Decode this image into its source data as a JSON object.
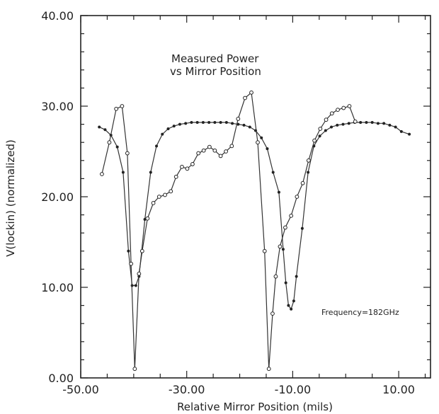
{
  "chart_data": {
    "type": "line",
    "title": "Measured Power",
    "subtitle": "vs Mirror Position",
    "xlabel": "Relative Mirror Position (mils)",
    "ylabel": "V(lockin) (normalized)",
    "xlim": [
      -50,
      16
    ],
    "ylim": [
      0,
      40
    ],
    "x_ticks": [
      -50,
      -30,
      -10,
      10
    ],
    "x_tick_labels": [
      "-50.00",
      "-30.00",
      "-10.00",
      "10.00"
    ],
    "y_ticks": [
      0,
      10,
      20,
      30,
      40
    ],
    "y_tick_labels": [
      "0.00",
      "10.00",
      "20.00",
      "30.00",
      "40.00"
    ],
    "annotation": "Frequency=182GHz",
    "series": [
      {
        "marker": "dot",
        "points": [
          [
            -46.5,
            27.7
          ],
          [
            -45.4,
            27.4
          ],
          [
            -44.3,
            26.8
          ],
          [
            -43.1,
            25.5
          ],
          [
            -42,
            22.7
          ],
          [
            -41,
            14
          ],
          [
            -40.3,
            10.2
          ],
          [
            -39.6,
            10.2
          ],
          [
            -39,
            11.2
          ],
          [
            -38.5,
            14
          ],
          [
            -37.9,
            17.5
          ],
          [
            -36.8,
            22.7
          ],
          [
            -35.7,
            25.6
          ],
          [
            -34.6,
            26.9
          ],
          [
            -33.5,
            27.5
          ],
          [
            -32.4,
            27.8
          ],
          [
            -31.3,
            28
          ],
          [
            -30.2,
            28.1
          ],
          [
            -29.1,
            28.2
          ],
          [
            -28,
            28.2
          ],
          [
            -26.9,
            28.2
          ],
          [
            -25.8,
            28.2
          ],
          [
            -24.7,
            28.2
          ],
          [
            -23.6,
            28.2
          ],
          [
            -22.5,
            28.2
          ],
          [
            -21.4,
            28.1
          ],
          [
            -20.3,
            28
          ],
          [
            -19.2,
            27.9
          ],
          [
            -18.1,
            27.7
          ],
          [
            -17,
            27.3
          ],
          [
            -15.9,
            26.5
          ],
          [
            -14.8,
            25.3
          ],
          [
            -13.7,
            22.7
          ],
          [
            -12.6,
            20.5
          ],
          [
            -11.8,
            14.2
          ],
          [
            -11.3,
            10.5
          ],
          [
            -10.8,
            8
          ],
          [
            -10.3,
            7.6
          ],
          [
            -9.8,
            8.5
          ],
          [
            -9.3,
            11.2
          ],
          [
            -8.2,
            16.5
          ],
          [
            -7.1,
            22.7
          ],
          [
            -6,
            25.6
          ],
          [
            -4.9,
            26.7
          ],
          [
            -3.8,
            27.3
          ],
          [
            -2.7,
            27.7
          ],
          [
            -1.6,
            27.9
          ],
          [
            -0.5,
            28
          ],
          [
            0.6,
            28.1
          ],
          [
            1.7,
            28.2
          ],
          [
            2.8,
            28.2
          ],
          [
            3.9,
            28.2
          ],
          [
            5,
            28.2
          ],
          [
            6.1,
            28.1
          ],
          [
            7.2,
            28.1
          ],
          [
            8.3,
            27.9
          ],
          [
            9.4,
            27.7
          ],
          [
            10.5,
            27.2
          ],
          [
            12,
            26.9
          ]
        ]
      },
      {
        "marker": "open",
        "points": [
          [
            -46,
            22.5
          ],
          [
            -44.6,
            26
          ],
          [
            -43.3,
            29.7
          ],
          [
            -42.2,
            30
          ],
          [
            -41.2,
            24.8
          ],
          [
            -40.5,
            12.6
          ],
          [
            -39.8,
            1
          ],
          [
            -39,
            11.5
          ],
          [
            -38.4,
            14
          ],
          [
            -37.4,
            17.6
          ],
          [
            -36.3,
            19.3
          ],
          [
            -35.2,
            20
          ],
          [
            -34.1,
            20.2
          ],
          [
            -33,
            20.6
          ],
          [
            -32,
            22.2
          ],
          [
            -30.9,
            23.3
          ],
          [
            -29.9,
            23.1
          ],
          [
            -28.9,
            23.6
          ],
          [
            -27.8,
            24.8
          ],
          [
            -26.8,
            25.1
          ],
          [
            -25.7,
            25.5
          ],
          [
            -24.7,
            25.1
          ],
          [
            -23.6,
            24.5
          ],
          [
            -22.6,
            25
          ],
          [
            -21.5,
            25.6
          ],
          [
            -20.3,
            28.6
          ],
          [
            -19,
            30.9
          ],
          [
            -17.8,
            31.5
          ],
          [
            -16.6,
            26
          ],
          [
            -15.3,
            14
          ],
          [
            -14.5,
            1
          ],
          [
            -13.8,
            7.1
          ],
          [
            -13.2,
            11.2
          ],
          [
            -12.4,
            14.5
          ],
          [
            -11.4,
            16.6
          ],
          [
            -10.3,
            17.9
          ],
          [
            -9.2,
            20
          ],
          [
            -8.1,
            21.5
          ],
          [
            -7,
            24
          ],
          [
            -5.9,
            26.2
          ],
          [
            -4.8,
            27.5
          ],
          [
            -3.7,
            28.5
          ],
          [
            -2.6,
            29.2
          ],
          [
            -1.5,
            29.6
          ],
          [
            -0.4,
            29.8
          ],
          [
            0.7,
            30
          ],
          [
            1.8,
            28.3
          ]
        ]
      }
    ]
  }
}
